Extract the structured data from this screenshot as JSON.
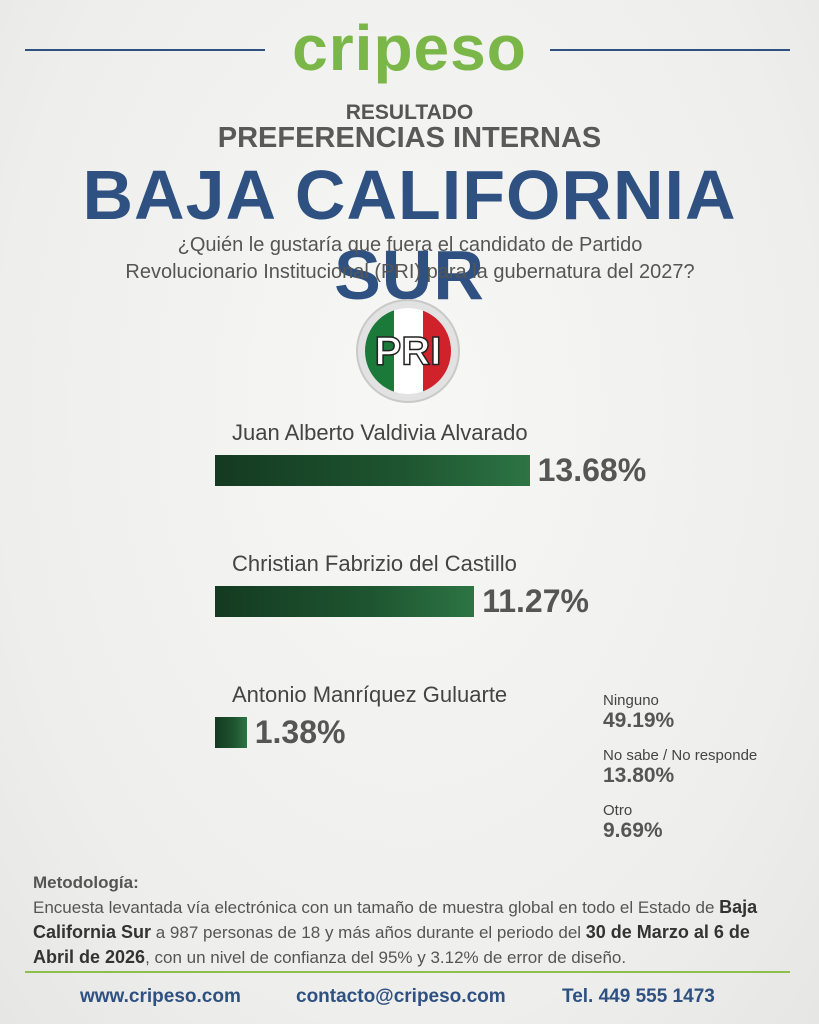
{
  "header": {
    "logo": "cripeso",
    "kicker": "RESULTADO",
    "subtitle": "PREFERENCIAS INTERNAS",
    "title": "BAJA CALIFORNIA SUR",
    "question": "¿Quién le gustaría que fuera el candidato de Partido Revolucionario Institucional (PRI) para la gubernatura del 2027?",
    "party": "PRI"
  },
  "chart_data": {
    "type": "bar",
    "categories": [
      "Juan Alberto Valdivia Alvarado",
      "Christian Fabrizio del Castillo",
      "Antonio Manríquez Guluarte"
    ],
    "values": [
      13.68,
      11.27,
      1.38
    ],
    "value_labels": [
      "13.68%",
      "11.27%",
      "1.38%"
    ],
    "color": "#1e5530"
  },
  "others": [
    {
      "label": "Ninguno",
      "value": 49.19,
      "value_label": "49.19%",
      "color": "#c8252c"
    },
    {
      "label": "No sabe / No responde",
      "value": 13.8,
      "value_label": "13.80%",
      "color": "#e07a2e"
    },
    {
      "label": "Otro",
      "value": 9.69,
      "value_label": "9.69%",
      "color": "#4a4a4a"
    }
  ],
  "methodology": {
    "label": "Metodología:",
    "text": [
      "Encuesta levantada vía electrónica con un tamaño de muestra global en todo el Estado de ",
      "Baja California Sur",
      " a 987 personas de 18 y más años durante el periodo del ",
      "30 de Marzo al 6 de Abril de 2026",
      ", con un nivel de confianza del 95% y 3.12% de error de diseño."
    ]
  },
  "footer": {
    "web": "www.cripeso.com",
    "email": "contacto@cripeso.com",
    "phone": "Tel. 449 555 1473"
  }
}
